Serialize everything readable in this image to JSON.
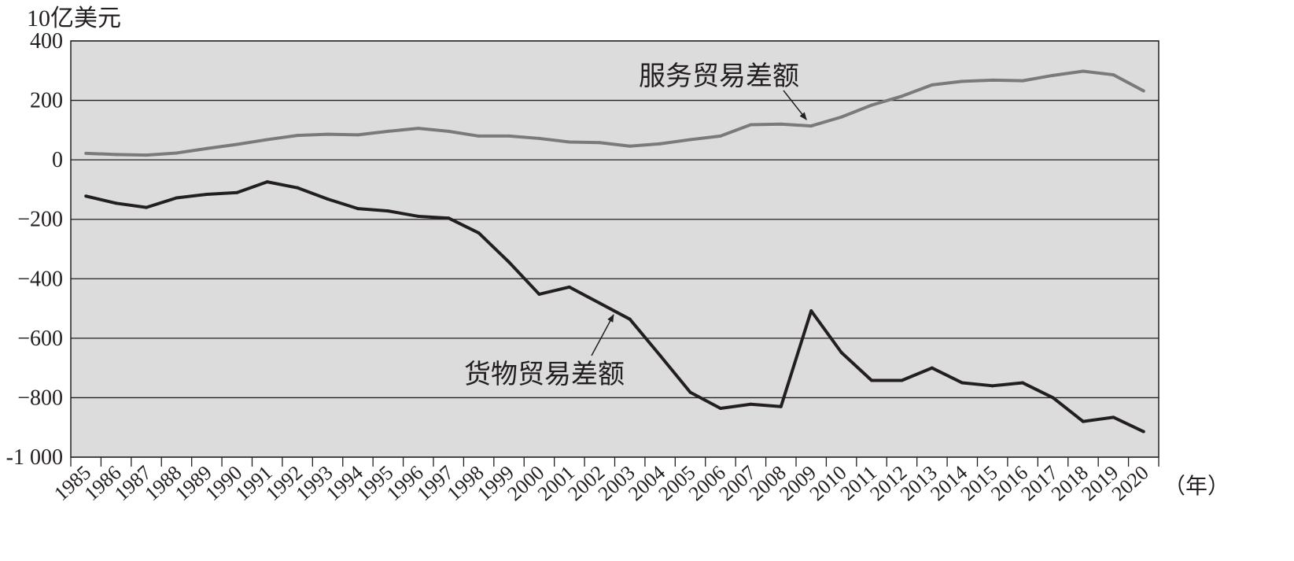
{
  "chart_data": {
    "type": "line",
    "ylabel": "10亿美元",
    "xunit": "（年）",
    "ylim": [
      -1000,
      400
    ],
    "yticks": [
      400,
      200,
      0,
      -200,
      -400,
      -600,
      -800,
      -1000
    ],
    "ytick_labels": [
      "400",
      "200",
      "0",
      "−200",
      "−400",
      "−600",
      "−800",
      "-1 000"
    ],
    "grid": true,
    "categories": [
      "1985",
      "1986",
      "1987",
      "1988",
      "1989",
      "1990",
      "1991",
      "1992",
      "1993",
      "1994",
      "1995",
      "1996",
      "1997",
      "1998",
      "1999",
      "2000",
      "2001",
      "2002",
      "2003",
      "2004",
      "2005",
      "2006",
      "2007",
      "2008",
      "2009",
      "2010",
      "2011",
      "2012",
      "2013",
      "2014",
      "2015",
      "2016",
      "2017",
      "2018",
      "2019",
      "2020"
    ],
    "series": [
      {
        "name": "服务贸易差额",
        "color": "#7a7a7a",
        "values": [
          22,
          18,
          16,
          23,
          38,
          52,
          68,
          82,
          86,
          84,
          96,
          106,
          96,
          80,
          80,
          72,
          60,
          58,
          46,
          54,
          68,
          80,
          118,
          120,
          114,
          144,
          184,
          214,
          252,
          264,
          268,
          266,
          284,
          298,
          286,
          232
        ]
      },
      {
        "name": "货物贸易差额",
        "color": "#231f20",
        "values": [
          -122,
          -146,
          -160,
          -128,
          -116,
          -110,
          -74,
          -94,
          -132,
          -164,
          -172,
          -190,
          -196,
          -246,
          -344,
          -452,
          -428,
          -482,
          -536,
          -658,
          -782,
          -836,
          -822,
          -830,
          -508,
          -648,
          -742,
          -742,
          -700,
          -750,
          -760,
          -750,
          -800,
          -880,
          -866,
          -914
        ]
      }
    ],
    "annotations": [
      {
        "text": "服务贸易差额",
        "series": "服务贸易差额"
      },
      {
        "text": "货物贸易差额",
        "series": "货物贸易差额"
      }
    ],
    "colors": {
      "plot_bg": "#dcdcdc",
      "grid": "#231f20",
      "axis": "#231f20"
    }
  }
}
